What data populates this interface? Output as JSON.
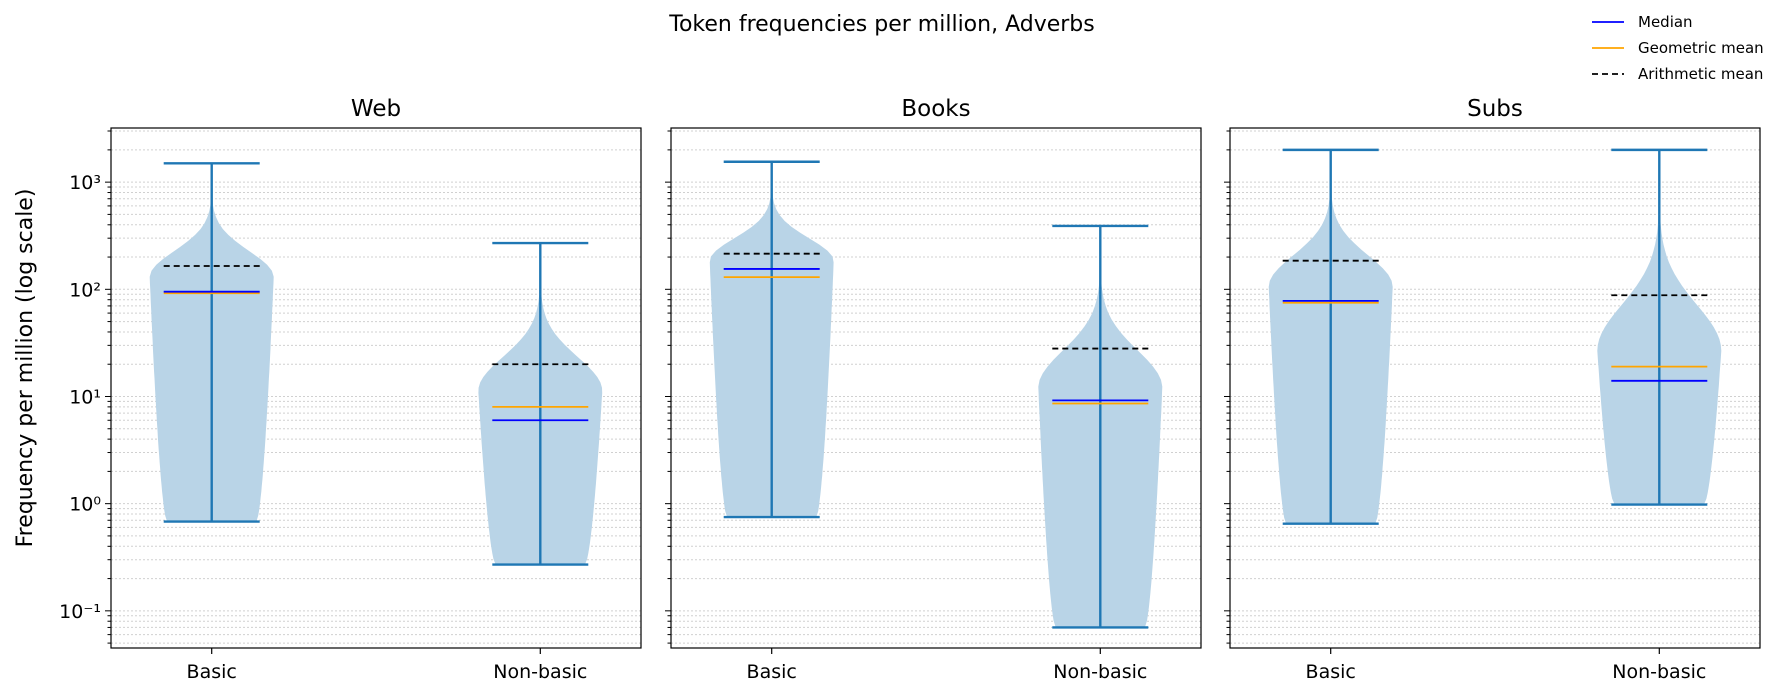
{
  "chart_data": {
    "type": "violin",
    "title": "Token frequencies per million, Adverbs",
    "ylabel": "Frequency per million (log scale)",
    "yscale": "log",
    "ylim": [
      0.045,
      3200
    ],
    "y_major_ticks": [
      {
        "value": 0.1,
        "label": "10⁻¹"
      },
      {
        "value": 1,
        "label": "10⁰"
      },
      {
        "value": 10,
        "label": "10¹"
      },
      {
        "value": 100,
        "label": "10²"
      },
      {
        "value": 1000,
        "label": "10³"
      }
    ],
    "grid": "y, major and minor, dotted",
    "categories": [
      "Basic",
      "Non-basic"
    ],
    "legend": {
      "placement": "top-right",
      "entries": [
        {
          "label": "Median",
          "color": "#0000ff",
          "style": "solid"
        },
        {
          "label": "Geometric mean",
          "color": "#ffa500",
          "style": "solid"
        },
        {
          "label": "Arithmetic mean",
          "color": "#000000",
          "style": "dashed"
        }
      ]
    },
    "colors": {
      "violin_fill": "#b9d4e7",
      "violin_line": "#1f77b4"
    },
    "panels": [
      {
        "title": "Web",
        "groups": [
          {
            "category": "Basic",
            "min": 0.68,
            "max": 1500,
            "median": 95,
            "geometric_mean": 92,
            "arithmetic_mean": 165
          },
          {
            "category": "Non-basic",
            "min": 0.27,
            "max": 270,
            "median": 6,
            "geometric_mean": 8,
            "arithmetic_mean": 20
          }
        ]
      },
      {
        "title": "Books",
        "groups": [
          {
            "category": "Basic",
            "min": 0.75,
            "max": 1550,
            "median": 155,
            "geometric_mean": 130,
            "arithmetic_mean": 215
          },
          {
            "category": "Non-basic",
            "min": 0.07,
            "max": 390,
            "median": 9.2,
            "geometric_mean": 8.6,
            "arithmetic_mean": 28
          }
        ]
      },
      {
        "title": "Subs",
        "groups": [
          {
            "category": "Basic",
            "min": 0.65,
            "max": 2000,
            "median": 78,
            "geometric_mean": 75,
            "arithmetic_mean": 185
          },
          {
            "category": "Non-basic",
            "min": 0.98,
            "max": 2000,
            "median": 14,
            "geometric_mean": 19,
            "arithmetic_mean": 88
          }
        ]
      }
    ]
  }
}
